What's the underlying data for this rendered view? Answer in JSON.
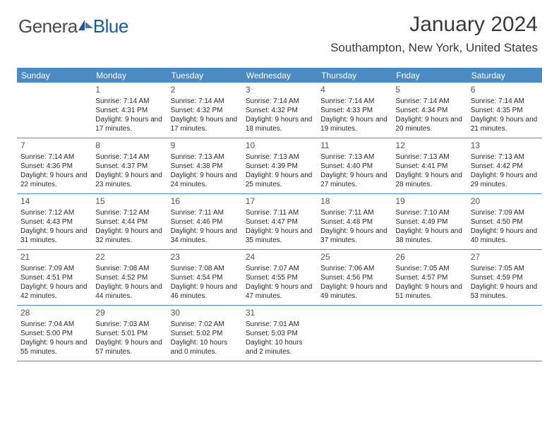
{
  "logo": {
    "part1": "Genera",
    "part2": "Blue"
  },
  "title": "January 2024",
  "subtitle": "Southampton, New York, United States",
  "colors": {
    "header_bg": "#4a8bc4",
    "header_text": "#ffffff",
    "border": "#4a8bc4",
    "text": "#2a2a2a",
    "logo_blue": "#1a5a9a"
  },
  "day_names": [
    "Sunday",
    "Monday",
    "Tuesday",
    "Wednesday",
    "Thursday",
    "Friday",
    "Saturday"
  ],
  "weeks": [
    [
      null,
      {
        "n": "1",
        "sunrise": "7:14 AM",
        "sunset": "4:31 PM",
        "daylight": "9 hours and 17 minutes."
      },
      {
        "n": "2",
        "sunrise": "7:14 AM",
        "sunset": "4:32 PM",
        "daylight": "9 hours and 17 minutes."
      },
      {
        "n": "3",
        "sunrise": "7:14 AM",
        "sunset": "4:32 PM",
        "daylight": "9 hours and 18 minutes."
      },
      {
        "n": "4",
        "sunrise": "7:14 AM",
        "sunset": "4:33 PM",
        "daylight": "9 hours and 19 minutes."
      },
      {
        "n": "5",
        "sunrise": "7:14 AM",
        "sunset": "4:34 PM",
        "daylight": "9 hours and 20 minutes."
      },
      {
        "n": "6",
        "sunrise": "7:14 AM",
        "sunset": "4:35 PM",
        "daylight": "9 hours and 21 minutes."
      }
    ],
    [
      {
        "n": "7",
        "sunrise": "7:14 AM",
        "sunset": "4:36 PM",
        "daylight": "9 hours and 22 minutes."
      },
      {
        "n": "8",
        "sunrise": "7:14 AM",
        "sunset": "4:37 PM",
        "daylight": "9 hours and 23 minutes."
      },
      {
        "n": "9",
        "sunrise": "7:13 AM",
        "sunset": "4:38 PM",
        "daylight": "9 hours and 24 minutes."
      },
      {
        "n": "10",
        "sunrise": "7:13 AM",
        "sunset": "4:39 PM",
        "daylight": "9 hours and 25 minutes."
      },
      {
        "n": "11",
        "sunrise": "7:13 AM",
        "sunset": "4:40 PM",
        "daylight": "9 hours and 27 minutes."
      },
      {
        "n": "12",
        "sunrise": "7:13 AM",
        "sunset": "4:41 PM",
        "daylight": "9 hours and 28 minutes."
      },
      {
        "n": "13",
        "sunrise": "7:13 AM",
        "sunset": "4:42 PM",
        "daylight": "9 hours and 29 minutes."
      }
    ],
    [
      {
        "n": "14",
        "sunrise": "7:12 AM",
        "sunset": "4:43 PM",
        "daylight": "9 hours and 31 minutes."
      },
      {
        "n": "15",
        "sunrise": "7:12 AM",
        "sunset": "4:44 PM",
        "daylight": "9 hours and 32 minutes."
      },
      {
        "n": "16",
        "sunrise": "7:11 AM",
        "sunset": "4:46 PM",
        "daylight": "9 hours and 34 minutes."
      },
      {
        "n": "17",
        "sunrise": "7:11 AM",
        "sunset": "4:47 PM",
        "daylight": "9 hours and 35 minutes."
      },
      {
        "n": "18",
        "sunrise": "7:11 AM",
        "sunset": "4:48 PM",
        "daylight": "9 hours and 37 minutes."
      },
      {
        "n": "19",
        "sunrise": "7:10 AM",
        "sunset": "4:49 PM",
        "daylight": "9 hours and 38 minutes."
      },
      {
        "n": "20",
        "sunrise": "7:09 AM",
        "sunset": "4:50 PM",
        "daylight": "9 hours and 40 minutes."
      }
    ],
    [
      {
        "n": "21",
        "sunrise": "7:09 AM",
        "sunset": "4:51 PM",
        "daylight": "9 hours and 42 minutes."
      },
      {
        "n": "22",
        "sunrise": "7:08 AM",
        "sunset": "4:52 PM",
        "daylight": "9 hours and 44 minutes."
      },
      {
        "n": "23",
        "sunrise": "7:08 AM",
        "sunset": "4:54 PM",
        "daylight": "9 hours and 46 minutes."
      },
      {
        "n": "24",
        "sunrise": "7:07 AM",
        "sunset": "4:55 PM",
        "daylight": "9 hours and 47 minutes."
      },
      {
        "n": "25",
        "sunrise": "7:06 AM",
        "sunset": "4:56 PM",
        "daylight": "9 hours and 49 minutes."
      },
      {
        "n": "26",
        "sunrise": "7:05 AM",
        "sunset": "4:57 PM",
        "daylight": "9 hours and 51 minutes."
      },
      {
        "n": "27",
        "sunrise": "7:05 AM",
        "sunset": "4:59 PM",
        "daylight": "9 hours and 53 minutes."
      }
    ],
    [
      {
        "n": "28",
        "sunrise": "7:04 AM",
        "sunset": "5:00 PM",
        "daylight": "9 hours and 55 minutes."
      },
      {
        "n": "29",
        "sunrise": "7:03 AM",
        "sunset": "5:01 PM",
        "daylight": "9 hours and 57 minutes."
      },
      {
        "n": "30",
        "sunrise": "7:02 AM",
        "sunset": "5:02 PM",
        "daylight": "10 hours and 0 minutes."
      },
      {
        "n": "31",
        "sunrise": "7:01 AM",
        "sunset": "5:03 PM",
        "daylight": "10 hours and 2 minutes."
      },
      null,
      null,
      null
    ]
  ],
  "labels": {
    "sunrise": "Sunrise:",
    "sunset": "Sunset:",
    "daylight": "Daylight:"
  }
}
